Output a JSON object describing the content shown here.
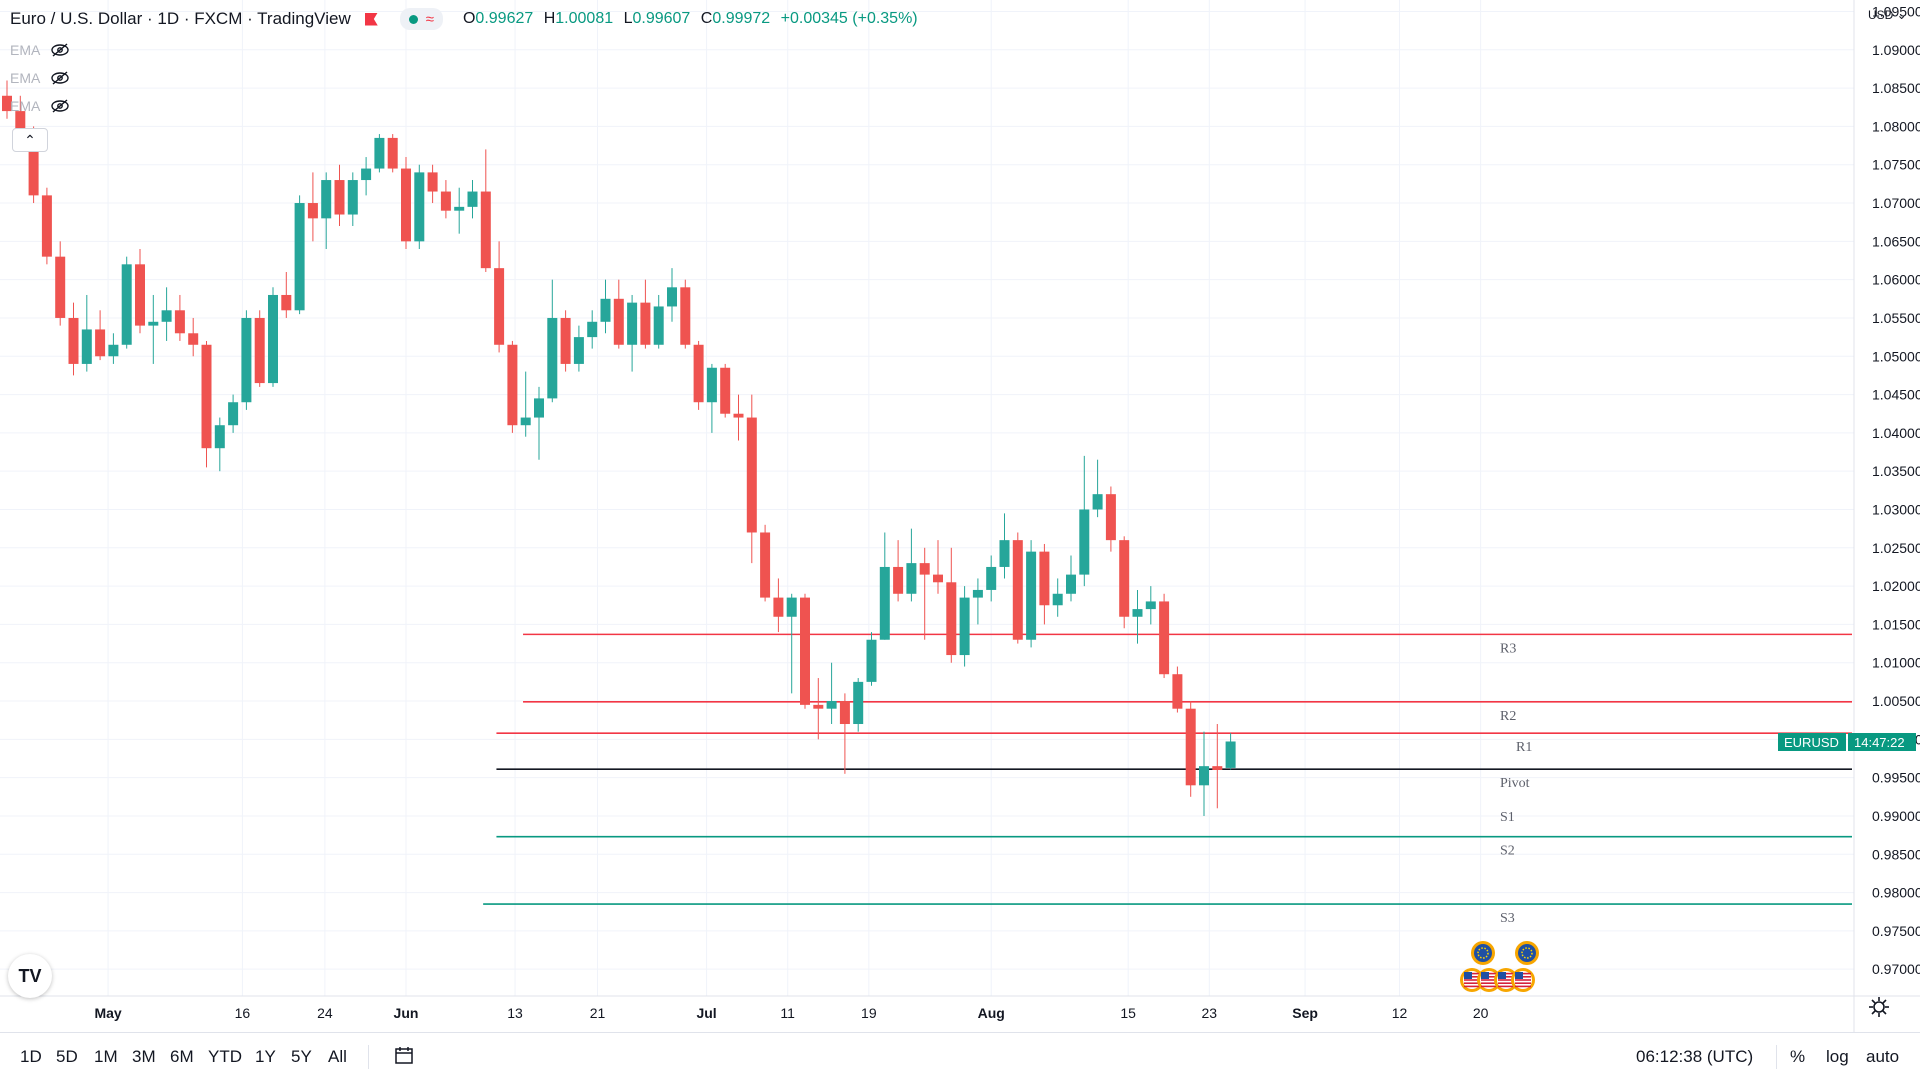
{
  "legend": {
    "title": "Euro / U.S. Dollar · 1D · FXCM · TradingView",
    "open_label": "O",
    "open": "0.99627",
    "high_label": "H",
    "high": "1.00081",
    "low_label": "L",
    "low": "0.99607",
    "close_label": "C",
    "close": "0.99972",
    "change": "+0.00345 (+0.35%)"
  },
  "indicators": [
    {
      "label": "EMA",
      "icon": "eye-off-icon"
    },
    {
      "label": "EMA",
      "icon": "eye-off-icon"
    },
    {
      "label": "EMA",
      "icon": "eye-off-icon"
    }
  ],
  "price_axis": {
    "currency": "USD",
    "ticks": [
      "1.09500",
      "1.09000",
      "1.08500",
      "1.08000",
      "1.07500",
      "1.07000",
      "1.06500",
      "1.06000",
      "1.05500",
      "1.05000",
      "1.04500",
      "1.04000",
      "1.03500",
      "1.03000",
      "1.02500",
      "1.02000",
      "1.01500",
      "1.01000",
      "1.00500",
      "1.00000",
      "0.99500",
      "0.99000",
      "0.98500",
      "0.98000",
      "0.97500",
      "0.97000"
    ]
  },
  "time_axis": {
    "labels": [
      "May",
      "16",
      "24",
      "Jun",
      "13",
      "21",
      "Jul",
      "11",
      "19",
      "Aug",
      "15",
      "23",
      "Sep",
      "12",
      "20"
    ],
    "bold": [
      "May",
      "Jun",
      "Jul",
      "Aug",
      "Sep"
    ]
  },
  "symbol_tag": {
    "name": "EURUSD",
    "countdown": "14:47:22"
  },
  "pivots": [
    {
      "label": "R3",
      "value": 1.0137,
      "color": "#f23645"
    },
    {
      "label": "R2",
      "value": 1.0049,
      "color": "#f23645"
    },
    {
      "label": "R1",
      "value": 1.0008,
      "color": "#f23645"
    },
    {
      "label": "Pivot",
      "value": 0.9961,
      "color": "#131722"
    },
    {
      "label": "S1",
      "value": "",
      "color": "#089981"
    },
    {
      "label": "S2",
      "value": 0.9873,
      "color": "#089981"
    },
    {
      "label": "S3",
      "value": 0.9785,
      "color": "#089981"
    }
  ],
  "chart_data": {
    "type": "candlestick",
    "symbol": "EURUSD",
    "interval": "1D",
    "ylim": [
      0.9665,
      1.0965
    ],
    "colors": {
      "up": "#26a69a",
      "down": "#ef5350"
    },
    "candles": [
      {
        "o": 1.084,
        "h": 1.086,
        "l": 1.081,
        "c": 1.082
      },
      {
        "o": 1.082,
        "h": 1.084,
        "l": 1.077,
        "c": 1.079
      },
      {
        "o": 1.079,
        "h": 1.08,
        "l": 1.07,
        "c": 1.071
      },
      {
        "o": 1.071,
        "h": 1.072,
        "l": 1.062,
        "c": 1.063
      },
      {
        "o": 1.063,
        "h": 1.065,
        "l": 1.054,
        "c": 1.055
      },
      {
        "o": 1.055,
        "h": 1.057,
        "l": 1.0475,
        "c": 1.049
      },
      {
        "o": 1.049,
        "h": 1.058,
        "l": 1.048,
        "c": 1.0535
      },
      {
        "o": 1.0535,
        "h": 1.056,
        "l": 1.0495,
        "c": 1.05
      },
      {
        "o": 1.05,
        "h": 1.053,
        "l": 1.049,
        "c": 1.0515
      },
      {
        "o": 1.0515,
        "h": 1.063,
        "l": 1.051,
        "c": 1.062
      },
      {
        "o": 1.062,
        "h": 1.064,
        "l": 1.053,
        "c": 1.054
      },
      {
        "o": 1.054,
        "h": 1.058,
        "l": 1.049,
        "c": 1.0545
      },
      {
        "o": 1.0545,
        "h": 1.059,
        "l": 1.052,
        "c": 1.056
      },
      {
        "o": 1.056,
        "h": 1.058,
        "l": 1.052,
        "c": 1.053
      },
      {
        "o": 1.053,
        "h": 1.055,
        "l": 1.05,
        "c": 1.0515
      },
      {
        "o": 1.0515,
        "h": 1.052,
        "l": 1.0355,
        "c": 1.038
      },
      {
        "o": 1.038,
        "h": 1.042,
        "l": 1.035,
        "c": 1.041
      },
      {
        "o": 1.041,
        "h": 1.045,
        "l": 1.04,
        "c": 1.044
      },
      {
        "o": 1.044,
        "h": 1.056,
        "l": 1.043,
        "c": 1.055
      },
      {
        "o": 1.055,
        "h": 1.056,
        "l": 1.046,
        "c": 1.0465
      },
      {
        "o": 1.0465,
        "h": 1.059,
        "l": 1.046,
        "c": 1.058
      },
      {
        "o": 1.058,
        "h": 1.061,
        "l": 1.055,
        "c": 1.056
      },
      {
        "o": 1.056,
        "h": 1.071,
        "l": 1.0555,
        "c": 1.07
      },
      {
        "o": 1.07,
        "h": 1.074,
        "l": 1.065,
        "c": 1.068
      },
      {
        "o": 1.068,
        "h": 1.074,
        "l": 1.064,
        "c": 1.073
      },
      {
        "o": 1.073,
        "h": 1.075,
        "l": 1.067,
        "c": 1.0685
      },
      {
        "o": 1.0685,
        "h": 1.074,
        "l": 1.067,
        "c": 1.073
      },
      {
        "o": 1.073,
        "h": 1.076,
        "l": 1.071,
        "c": 1.0745
      },
      {
        "o": 1.0745,
        "h": 1.079,
        "l": 1.074,
        "c": 1.0785
      },
      {
        "o": 1.0785,
        "h": 1.079,
        "l": 1.074,
        "c": 1.0745
      },
      {
        "o": 1.0745,
        "h": 1.076,
        "l": 1.064,
        "c": 1.065
      },
      {
        "o": 1.065,
        "h": 1.075,
        "l": 1.064,
        "c": 1.074
      },
      {
        "o": 1.074,
        "h": 1.075,
        "l": 1.07,
        "c": 1.0715
      },
      {
        "o": 1.0715,
        "h": 1.073,
        "l": 1.068,
        "c": 1.069
      },
      {
        "o": 1.069,
        "h": 1.072,
        "l": 1.066,
        "c": 1.0695
      },
      {
        "o": 1.0695,
        "h": 1.073,
        "l": 1.068,
        "c": 1.0715
      },
      {
        "o": 1.0715,
        "h": 1.077,
        "l": 1.061,
        "c": 1.0615
      },
      {
        "o": 1.0615,
        "h": 1.065,
        "l": 1.0505,
        "c": 1.0515
      },
      {
        "o": 1.0515,
        "h": 1.052,
        "l": 1.04,
        "c": 1.041
      },
      {
        "o": 1.041,
        "h": 1.048,
        "l": 1.0395,
        "c": 1.042
      },
      {
        "o": 1.042,
        "h": 1.046,
        "l": 1.0365,
        "c": 1.0445
      },
      {
        "o": 1.0445,
        "h": 1.06,
        "l": 1.044,
        "c": 1.055
      },
      {
        "o": 1.055,
        "h": 1.056,
        "l": 1.048,
        "c": 1.049
      },
      {
        "o": 1.049,
        "h": 1.054,
        "l": 1.048,
        "c": 1.0525
      },
      {
        "o": 1.0525,
        "h": 1.056,
        "l": 1.051,
        "c": 1.0545
      },
      {
        "o": 1.0545,
        "h": 1.06,
        "l": 1.053,
        "c": 1.0575
      },
      {
        "o": 1.0575,
        "h": 1.06,
        "l": 1.051,
        "c": 1.0515
      },
      {
        "o": 1.0515,
        "h": 1.058,
        "l": 1.048,
        "c": 1.057
      },
      {
        "o": 1.057,
        "h": 1.06,
        "l": 1.051,
        "c": 1.0515
      },
      {
        "o": 1.0515,
        "h": 1.058,
        "l": 1.051,
        "c": 1.0565
      },
      {
        "o": 1.0565,
        "h": 1.0615,
        "l": 1.0545,
        "c": 1.059
      },
      {
        "o": 1.059,
        "h": 1.06,
        "l": 1.051,
        "c": 1.0515
      },
      {
        "o": 1.0515,
        "h": 1.052,
        "l": 1.043,
        "c": 1.044
      },
      {
        "o": 1.044,
        "h": 1.049,
        "l": 1.04,
        "c": 1.0485
      },
      {
        "o": 1.0485,
        "h": 1.049,
        "l": 1.042,
        "c": 1.0425
      },
      {
        "o": 1.0425,
        "h": 1.045,
        "l": 1.039,
        "c": 1.042
      },
      {
        "o": 1.042,
        "h": 1.045,
        "l": 1.023,
        "c": 1.027
      },
      {
        "o": 1.027,
        "h": 1.028,
        "l": 1.018,
        "c": 1.0185
      },
      {
        "o": 1.0185,
        "h": 1.021,
        "l": 1.014,
        "c": 1.016
      },
      {
        "o": 1.016,
        "h": 1.019,
        "l": 1.006,
        "c": 1.0185
      },
      {
        "o": 1.0185,
        "h": 1.019,
        "l": 1.004,
        "c": 1.0045
      },
      {
        "o": 1.0045,
        "h": 1.008,
        "l": 1.0,
        "c": 1.004
      },
      {
        "o": 1.004,
        "h": 1.01,
        "l": 1.002,
        "c": 1.005
      },
      {
        "o": 1.005,
        "h": 1.006,
        "l": 0.9955,
        "c": 1.002
      },
      {
        "o": 1.002,
        "h": 1.008,
        "l": 1.001,
        "c": 1.0075
      },
      {
        "o": 1.0075,
        "h": 1.014,
        "l": 1.007,
        "c": 1.013
      },
      {
        "o": 1.013,
        "h": 1.027,
        "l": 1.013,
        "c": 1.0225
      },
      {
        "o": 1.0225,
        "h": 1.026,
        "l": 1.018,
        "c": 1.019
      },
      {
        "o": 1.019,
        "h": 1.0275,
        "l": 1.018,
        "c": 1.023
      },
      {
        "o": 1.023,
        "h": 1.025,
        "l": 1.013,
        "c": 1.0215
      },
      {
        "o": 1.0215,
        "h": 1.026,
        "l": 1.019,
        "c": 1.0205
      },
      {
        "o": 1.0205,
        "h": 1.025,
        "l": 1.01,
        "c": 1.011
      },
      {
        "o": 1.011,
        "h": 1.02,
        "l": 1.0095,
        "c": 1.0185
      },
      {
        "o": 1.0185,
        "h": 1.021,
        "l": 1.015,
        "c": 1.0195
      },
      {
        "o": 1.0195,
        "h": 1.024,
        "l": 1.018,
        "c": 1.0225
      },
      {
        "o": 1.0225,
        "h": 1.0295,
        "l": 1.021,
        "c": 1.026
      },
      {
        "o": 1.026,
        "h": 1.027,
        "l": 1.0125,
        "c": 1.013
      },
      {
        "o": 1.013,
        "h": 1.026,
        "l": 1.012,
        "c": 1.0245
      },
      {
        "o": 1.0245,
        "h": 1.0255,
        "l": 1.015,
        "c": 1.0175
      },
      {
        "o": 1.0175,
        "h": 1.021,
        "l": 1.016,
        "c": 1.019
      },
      {
        "o": 1.019,
        "h": 1.024,
        "l": 1.018,
        "c": 1.0215
      },
      {
        "o": 1.0215,
        "h": 1.037,
        "l": 1.02,
        "c": 1.03
      },
      {
        "o": 1.03,
        "h": 1.0365,
        "l": 1.029,
        "c": 1.032
      },
      {
        "o": 1.032,
        "h": 1.033,
        "l": 1.0245,
        "c": 1.026
      },
      {
        "o": 1.026,
        "h": 1.0265,
        "l": 1.0145,
        "c": 1.016
      },
      {
        "o": 1.016,
        "h": 1.0195,
        "l": 1.0125,
        "c": 1.017
      },
      {
        "o": 1.017,
        "h": 1.02,
        "l": 1.015,
        "c": 1.018
      },
      {
        "o": 1.018,
        "h": 1.019,
        "l": 1.008,
        "c": 1.0085
      },
      {
        "o": 1.0085,
        "h": 1.0095,
        "l": 1.0035,
        "c": 1.004
      },
      {
        "o": 1.004,
        "h": 1.005,
        "l": 0.9925,
        "c": 0.994
      },
      {
        "o": 0.994,
        "h": 1.001,
        "l": 0.99,
        "c": 0.9965
      },
      {
        "o": 0.9965,
        "h": 1.002,
        "l": 0.991,
        "c": 0.996
      },
      {
        "o": 0.99627,
        "h": 1.00081,
        "l": 0.99607,
        "c": 0.99972
      }
    ],
    "x_start_index": 0,
    "time_ticks": [
      {
        "label": "May",
        "index": 7.6
      },
      {
        "label": "16",
        "index": 17.7
      },
      {
        "label": "24",
        "index": 23.9
      },
      {
        "label": "Jun",
        "index": 30.0
      },
      {
        "label": "13",
        "index": 38.2
      },
      {
        "label": "21",
        "index": 44.4
      },
      {
        "label": "Jul",
        "index": 52.6
      },
      {
        "label": "11",
        "index": 58.7
      },
      {
        "label": "19",
        "index": 64.8
      },
      {
        "label": "Aug",
        "index": 74.0
      },
      {
        "label": "15",
        "index": 84.3
      },
      {
        "label": "23",
        "index": 90.4
      },
      {
        "label": "Sep",
        "index": 97.6
      },
      {
        "label": "12",
        "index": 104.7
      },
      {
        "label": "20",
        "index": 110.8
      }
    ],
    "pivot_start_index": [
      38.8,
      38.8,
      36.8,
      36.8,
      null,
      36.8,
      35.8
    ]
  }
}
